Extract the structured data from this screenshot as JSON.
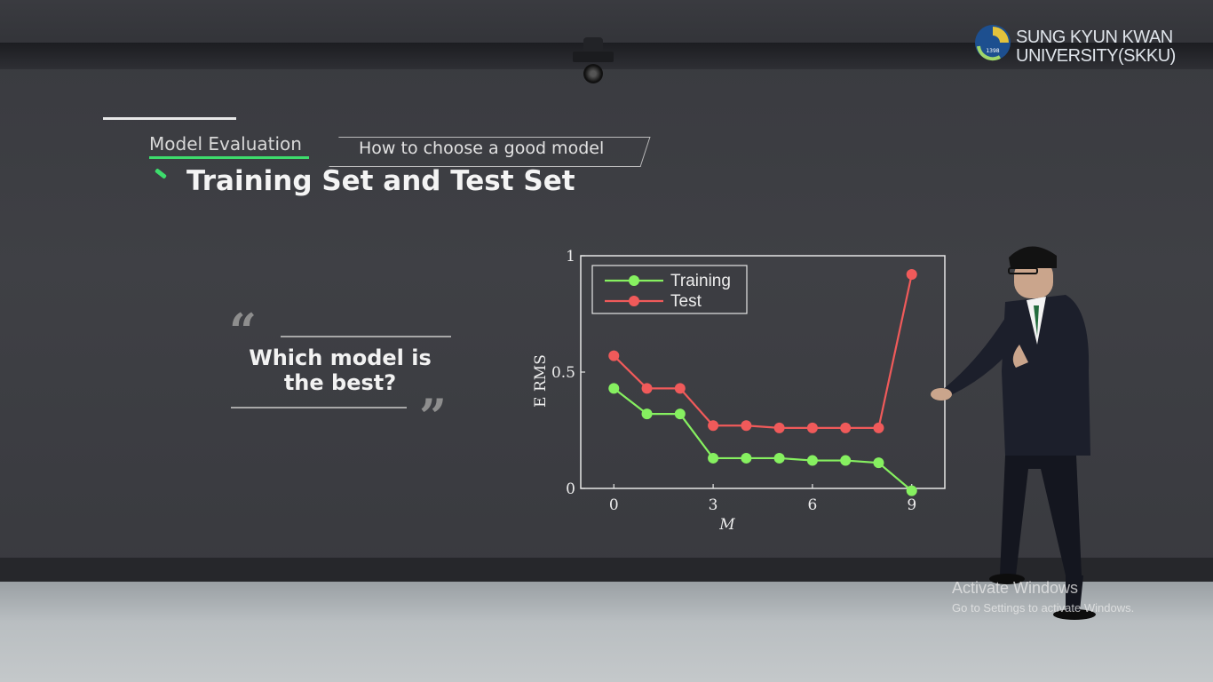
{
  "logo": {
    "line1": "SUNG KYUN KWAN",
    "line2": "UNIVERSITY(SKKU)",
    "year": "1398"
  },
  "breadcrumb": {
    "section": "Model Evaluation",
    "topic": "How to choose a good model"
  },
  "page_title": "Training Set and Test Set",
  "quote": {
    "line1": "Which model is",
    "line2": "the best?"
  },
  "watermark": {
    "title": "Activate Windows",
    "subtitle": "Go to Settings to activate Windows."
  },
  "colors": {
    "accent": "#3ddc6c",
    "training": "#86f060",
    "test": "#f05a5a"
  },
  "chart_data": {
    "type": "line",
    "title": "",
    "xlabel": "M",
    "ylabel": "E RMS",
    "xlim": [
      -1,
      10
    ],
    "ylim": [
      0,
      1
    ],
    "xticks": [
      "0",
      "3",
      "6",
      "9"
    ],
    "yticks": [
      "0",
      "0.5",
      "1"
    ],
    "legend_position": "top-left",
    "grid": false,
    "x": [
      0,
      1,
      2,
      3,
      4,
      5,
      6,
      7,
      8,
      9
    ],
    "series": [
      {
        "name": "Training",
        "values": [
          0.43,
          0.32,
          0.32,
          0.13,
          0.13,
          0.13,
          0.12,
          0.12,
          0.11,
          -0.01
        ]
      },
      {
        "name": "Test",
        "values": [
          0.57,
          0.43,
          0.43,
          0.27,
          0.27,
          0.26,
          0.26,
          0.26,
          0.26,
          0.92
        ]
      }
    ]
  }
}
